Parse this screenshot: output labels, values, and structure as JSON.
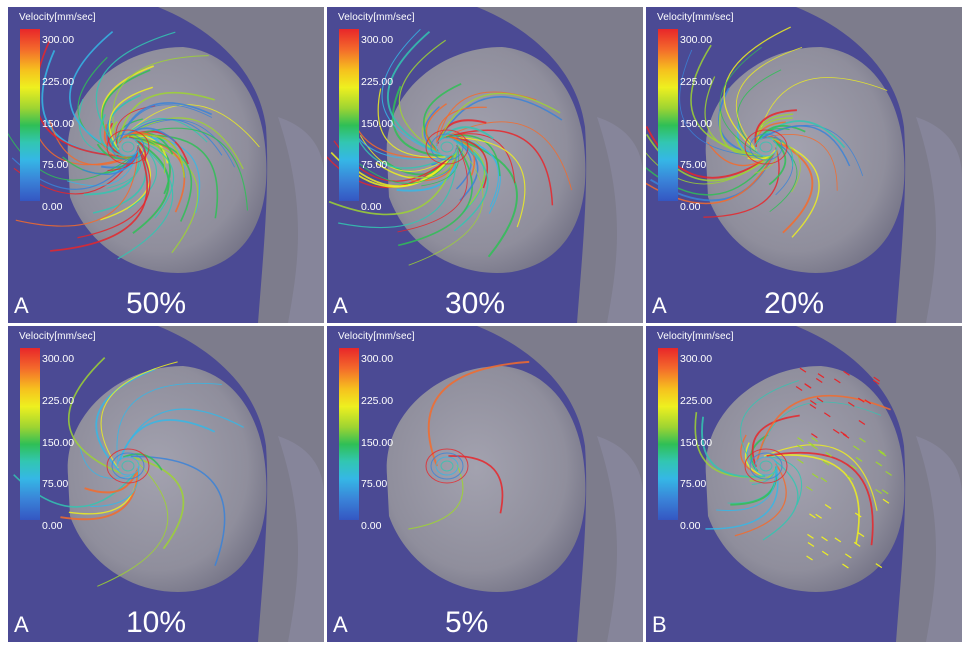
{
  "legend": {
    "title": "Velocity[mm/sec]",
    "ticks": [
      "300.00",
      "225.00",
      "150.00",
      "75.00",
      "0.00"
    ]
  },
  "panels": [
    {
      "letter": "A",
      "percent": "50%",
      "density": 1.0,
      "lines": 70
    },
    {
      "letter": "A",
      "percent": "30%",
      "density": 0.75,
      "lines": 55
    },
    {
      "letter": "A",
      "percent": "20%",
      "density": 0.5,
      "lines": 40
    },
    {
      "letter": "A",
      "percent": "10%",
      "density": 0.2,
      "lines": 16
    },
    {
      "letter": "A",
      "percent": "5%",
      "density": 0.05,
      "lines": 3
    },
    {
      "letter": "B",
      "percent": "",
      "density": 0.35,
      "lines": 22
    }
  ],
  "colors": {
    "background": "#4b4a94",
    "tissue": "#8f8e9c",
    "tissue_shadow": "#6f6e82",
    "label": "#ffffff"
  }
}
